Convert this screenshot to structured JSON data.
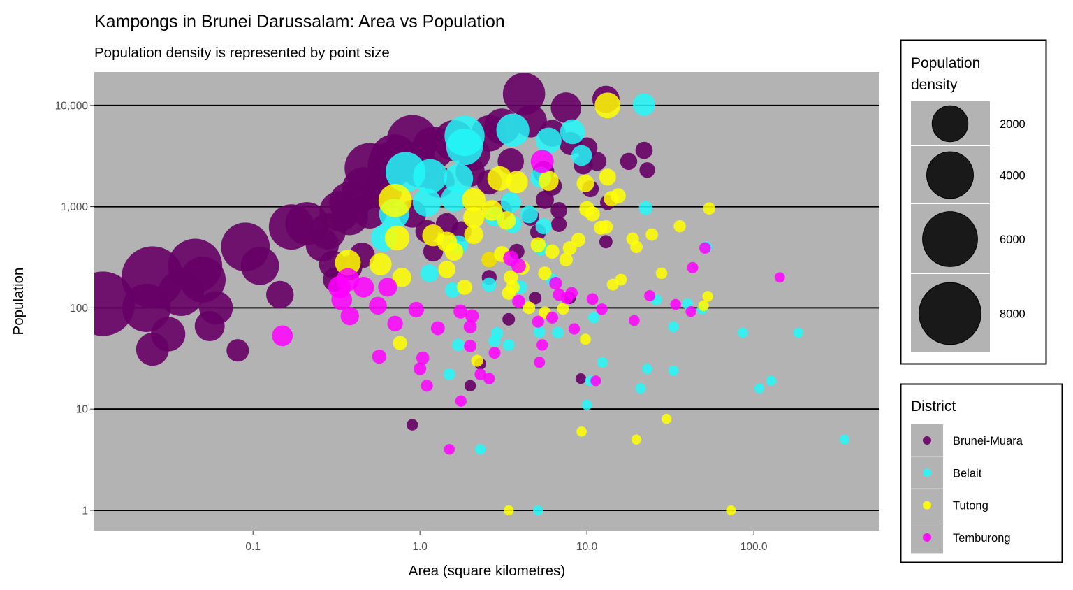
{
  "chart_data": {
    "type": "scatter",
    "title": "Kampongs in Brunei Darussalam: Area vs Population",
    "subtitle": "Population density is represented by point size",
    "xlabel": "Area (square kilometres)",
    "ylabel": "Population",
    "xscale": "log10",
    "yscale": "log10",
    "xlim": [
      0.0112,
      566
    ],
    "ylim": [
      0.63,
      21400
    ],
    "xticks": [
      {
        "v": 0.1,
        "label": "0.1"
      },
      {
        "v": 1,
        "label": "1.0"
      },
      {
        "v": 10,
        "label": "10.0"
      },
      {
        "v": 100,
        "label": "100.0"
      }
    ],
    "yticks": [
      {
        "v": 1,
        "label": "1"
      },
      {
        "v": 10,
        "label": "10"
      },
      {
        "v": 100,
        "label": "100"
      },
      {
        "v": 1000,
        "label": "1,000"
      },
      {
        "v": 10000,
        "label": "10,000"
      }
    ],
    "grid": "horizontal major",
    "panel_color": "#b3b3b3",
    "size_legend": {
      "title_line1": "Population",
      "title_line2": "density",
      "breaks": [
        {
          "v": 2000,
          "label": "2000"
        },
        {
          "v": 4000,
          "label": "4000"
        },
        {
          "v": 6000,
          "label": "6000"
        },
        {
          "v": 8000,
          "label": "8000"
        }
      ]
    },
    "color_legend": {
      "title": "District"
    },
    "districts": [
      {
        "name": "Brunei-Muara",
        "color": "#660066"
      },
      {
        "name": "Belait",
        "color": "#22f8f8"
      },
      {
        "name": "Tutong",
        "color": "#ffff00"
      },
      {
        "name": "Temburong",
        "color": "#ff00ff"
      }
    ],
    "points_columns": [
      "area_km2",
      "population",
      "district_index"
    ],
    "points": [
      [
        0.0126,
        110,
        0
      ],
      [
        0.025,
        200,
        0
      ],
      [
        0.023,
        100,
        0
      ],
      [
        0.025,
        39,
        0
      ],
      [
        0.031,
        55,
        0
      ],
      [
        0.037,
        140,
        0
      ],
      [
        0.045,
        260,
        0
      ],
      [
        0.055,
        66,
        0
      ],
      [
        0.06,
        100,
        0
      ],
      [
        0.05,
        190,
        0
      ],
      [
        0.081,
        38,
        0
      ],
      [
        0.09,
        400,
        0
      ],
      [
        0.11,
        260,
        0
      ],
      [
        0.145,
        135,
        0
      ],
      [
        0.17,
        630,
        0
      ],
      [
        0.21,
        680,
        0
      ],
      [
        0.26,
        420,
        0
      ],
      [
        0.33,
        900,
        0
      ],
      [
        0.38,
        1100,
        0
      ],
      [
        0.46,
        1500,
        0
      ],
      [
        0.5,
        2400,
        0
      ],
      [
        0.67,
        2600,
        0
      ],
      [
        0.9,
        4500,
        0
      ],
      [
        1.2,
        3800,
        0
      ],
      [
        1.6,
        4500,
        0
      ],
      [
        2.1,
        3300,
        0
      ],
      [
        2.6,
        5300,
        0
      ],
      [
        3.1,
        6200,
        0
      ],
      [
        4.2,
        13000,
        0
      ],
      [
        4.6,
        7000,
        0
      ],
      [
        6.2,
        5300,
        0
      ],
      [
        7.5,
        9500,
        0
      ],
      [
        10,
        3800,
        0
      ],
      [
        11.5,
        2800,
        0
      ],
      [
        13,
        11500,
        0
      ],
      [
        17.8,
        2800,
        0
      ],
      [
        22,
        3600,
        0
      ],
      [
        23,
        2300,
        0
      ],
      [
        13.3,
        1100,
        0
      ],
      [
        0.31,
        190,
        0
      ],
      [
        0.38,
        250,
        0
      ],
      [
        1.2,
        360,
        0
      ],
      [
        1.77,
        570,
        0
      ],
      [
        2.6,
        300,
        0
      ],
      [
        3.8,
        360,
        0
      ],
      [
        5.1,
        560,
        0
      ],
      [
        6.8,
        670,
        0
      ],
      [
        13,
        450,
        0
      ],
      [
        7.9,
        125,
        0
      ],
      [
        2.6,
        200,
        0
      ],
      [
        3.4,
        77,
        0
      ],
      [
        2.3,
        28,
        0
      ],
      [
        2.0,
        17,
        0
      ],
      [
        0.9,
        7,
        0
      ],
      [
        9.2,
        20,
        0
      ],
      [
        4.9,
        125,
        0
      ],
      [
        2.6,
        1750,
        0
      ],
      [
        3.1,
        920,
        0
      ],
      [
        4.6,
        790,
        0
      ],
      [
        6.2,
        1600,
        0
      ],
      [
        6.8,
        920,
        0
      ],
      [
        10.5,
        1500,
        0
      ],
      [
        5.6,
        1170,
        0
      ],
      [
        1.1,
        570,
        0
      ],
      [
        1.45,
        670,
        0
      ],
      [
        0.9,
        850,
        0
      ],
      [
        1.0,
        2400,
        0
      ],
      [
        1.3,
        1750,
        0
      ],
      [
        0.38,
        790,
        0
      ],
      [
        0.28,
        570,
        0
      ],
      [
        0.5,
        900,
        0
      ],
      [
        0.7,
        3000,
        0
      ],
      [
        0.6,
        1500,
        0
      ],
      [
        2.0,
        2200,
        0
      ],
      [
        3.5,
        2800,
        0
      ],
      [
        8.0,
        4200,
        0
      ],
      [
        9.5,
        2600,
        0
      ],
      [
        0.45,
        330,
        0
      ],
      [
        5.5,
        2200,
        0
      ],
      [
        0.3,
        270,
        0
      ],
      [
        22,
        10200,
        1
      ],
      [
        3.6,
        5700,
        1
      ],
      [
        1.85,
        5000,
        1
      ],
      [
        1.85,
        3900,
        1
      ],
      [
        0.82,
        2200,
        1
      ],
      [
        1.15,
        2000,
        1
      ],
      [
        1.7,
        1900,
        1
      ],
      [
        5.9,
        4500,
        1
      ],
      [
        8.2,
        5500,
        1
      ],
      [
        9.3,
        3200,
        1
      ],
      [
        5.3,
        1950,
        1
      ],
      [
        0.7,
        850,
        1
      ],
      [
        0.61,
        490,
        1
      ],
      [
        1.1,
        1100,
        1
      ],
      [
        1.6,
        1200,
        1
      ],
      [
        3.5,
        1100,
        1
      ],
      [
        4.5,
        840,
        1
      ],
      [
        3.6,
        670,
        1
      ],
      [
        2.8,
        800,
        1
      ],
      [
        5.5,
        640,
        1
      ],
      [
        1.7,
        420,
        1
      ],
      [
        1.14,
        220,
        1
      ],
      [
        1.57,
        150,
        1
      ],
      [
        2.6,
        170,
        1
      ],
      [
        4.0,
        160,
        1
      ],
      [
        22.5,
        970,
        1
      ],
      [
        52,
        400,
        1
      ],
      [
        26,
        120,
        1
      ],
      [
        40,
        110,
        1
      ],
      [
        49,
        97,
        1
      ],
      [
        86,
        57,
        1
      ],
      [
        185,
        57,
        1
      ],
      [
        33,
        65,
        1
      ],
      [
        1.7,
        43,
        1
      ],
      [
        2.9,
        56,
        1
      ],
      [
        3.4,
        43,
        1
      ],
      [
        2.8,
        47,
        1
      ],
      [
        11,
        80,
        1
      ],
      [
        12.4,
        29,
        1
      ],
      [
        10.5,
        19,
        1
      ],
      [
        10,
        11,
        1
      ],
      [
        1.5,
        22,
        1
      ],
      [
        2.3,
        4,
        1
      ],
      [
        23,
        25,
        1
      ],
      [
        21,
        16,
        1
      ],
      [
        33,
        24,
        1
      ],
      [
        108,
        16,
        1
      ],
      [
        127,
        19,
        1
      ],
      [
        350,
        5,
        1
      ],
      [
        5.1,
        1,
        1
      ],
      [
        5.2,
        58,
        1
      ],
      [
        6.7,
        57,
        1
      ],
      [
        5.3,
        390,
        1
      ],
      [
        6.2,
        190,
        1
      ],
      [
        13.3,
        10000,
        2
      ],
      [
        0.71,
        1150,
        2
      ],
      [
        0.73,
        490,
        2
      ],
      [
        0.37,
        280,
        2
      ],
      [
        0.58,
        270,
        2
      ],
      [
        0.78,
        200,
        2
      ],
      [
        0.76,
        45,
        2
      ],
      [
        1.45,
        450,
        2
      ],
      [
        1.45,
        240,
        2
      ],
      [
        1.6,
        360,
        2
      ],
      [
        2.1,
        1170,
        2
      ],
      [
        3.0,
        1900,
        2
      ],
      [
        3.8,
        1750,
        2
      ],
      [
        2.1,
        780,
        2
      ],
      [
        2.1,
        530,
        2
      ],
      [
        2.7,
        920,
        2
      ],
      [
        3.3,
        730,
        2
      ],
      [
        4.1,
        250,
        2
      ],
      [
        2.6,
        300,
        2
      ],
      [
        1.85,
        160,
        2
      ],
      [
        3.6,
        160,
        2
      ],
      [
        3.4,
        140,
        2
      ],
      [
        5.9,
        1800,
        2
      ],
      [
        9.8,
        1700,
        2
      ],
      [
        13.3,
        1960,
        2
      ],
      [
        10,
        950,
        2
      ],
      [
        10.8,
        850,
        2
      ],
      [
        12.1,
        620,
        2
      ],
      [
        15.4,
        1280,
        2
      ],
      [
        14,
        1200,
        2
      ],
      [
        8.9,
        470,
        2
      ],
      [
        13,
        630,
        2
      ],
      [
        18.8,
        480,
        2
      ],
      [
        24.5,
        530,
        2
      ],
      [
        36,
        640,
        2
      ],
      [
        54,
        960,
        2
      ],
      [
        53,
        130,
        2
      ],
      [
        50,
        105,
        2
      ],
      [
        19.8,
        400,
        2
      ],
      [
        28,
        220,
        2
      ],
      [
        16,
        190,
        2
      ],
      [
        14.3,
        170,
        2
      ],
      [
        9.8,
        49,
        2
      ],
      [
        2.2,
        30,
        2
      ],
      [
        9.3,
        6,
        2
      ],
      [
        19.8,
        5,
        2
      ],
      [
        30,
        8,
        2
      ],
      [
        3.4,
        1,
        2
      ],
      [
        73,
        1,
        2
      ],
      [
        3.1,
        340,
        2
      ],
      [
        5.1,
        420,
        2
      ],
      [
        6.2,
        360,
        2
      ],
      [
        7.5,
        300,
        2
      ],
      [
        7.9,
        390,
        2
      ],
      [
        3.5,
        200,
        2
      ],
      [
        5.6,
        220,
        2
      ],
      [
        7.2,
        98,
        2
      ],
      [
        5.6,
        90,
        2
      ],
      [
        4.5,
        100,
        2
      ],
      [
        1.2,
        520,
        2
      ],
      [
        0.15,
        53,
        3
      ],
      [
        0.37,
        190,
        3
      ],
      [
        0.33,
        160,
        3
      ],
      [
        0.46,
        160,
        3
      ],
      [
        0.34,
        120,
        3
      ],
      [
        0.38,
        83,
        3
      ],
      [
        0.56,
        105,
        3
      ],
      [
        0.64,
        160,
        3
      ],
      [
        0.95,
        96,
        3
      ],
      [
        0.71,
        70,
        3
      ],
      [
        0.57,
        33,
        3
      ],
      [
        1.28,
        63,
        3
      ],
      [
        1.04,
        32,
        3
      ],
      [
        1.0,
        25,
        3
      ],
      [
        1.1,
        17,
        3
      ],
      [
        2.0,
        65,
        3
      ],
      [
        2.05,
        83,
        3
      ],
      [
        1.75,
        92,
        3
      ],
      [
        2.0,
        42,
        3
      ],
      [
        1.76,
        12,
        3
      ],
      [
        1.5,
        4,
        3
      ],
      [
        2.3,
        22,
        3
      ],
      [
        2.6,
        20,
        3
      ],
      [
        2.8,
        36,
        3
      ],
      [
        3.5,
        310,
        3
      ],
      [
        3.9,
        116,
        3
      ],
      [
        5.4,
        2800,
        3
      ],
      [
        5.4,
        43,
        3
      ],
      [
        5.2,
        29,
        3
      ],
      [
        6.2,
        80,
        3
      ],
      [
        7.6,
        125,
        3
      ],
      [
        8.1,
        140,
        3
      ],
      [
        8.4,
        62,
        3
      ],
      [
        10.8,
        122,
        3
      ],
      [
        12.3,
        97,
        3
      ],
      [
        11.3,
        19,
        3
      ],
      [
        19.2,
        75,
        3
      ],
      [
        23.8,
        132,
        3
      ],
      [
        34,
        108,
        3
      ],
      [
        42,
        92,
        3
      ],
      [
        43,
        250,
        3
      ],
      [
        51,
        390,
        3
      ],
      [
        143,
        200,
        3
      ],
      [
        6.5,
        175,
        3
      ],
      [
        6.8,
        135,
        3
      ],
      [
        3.9,
        260,
        3
      ],
      [
        5.1,
        73,
        3
      ]
    ]
  }
}
